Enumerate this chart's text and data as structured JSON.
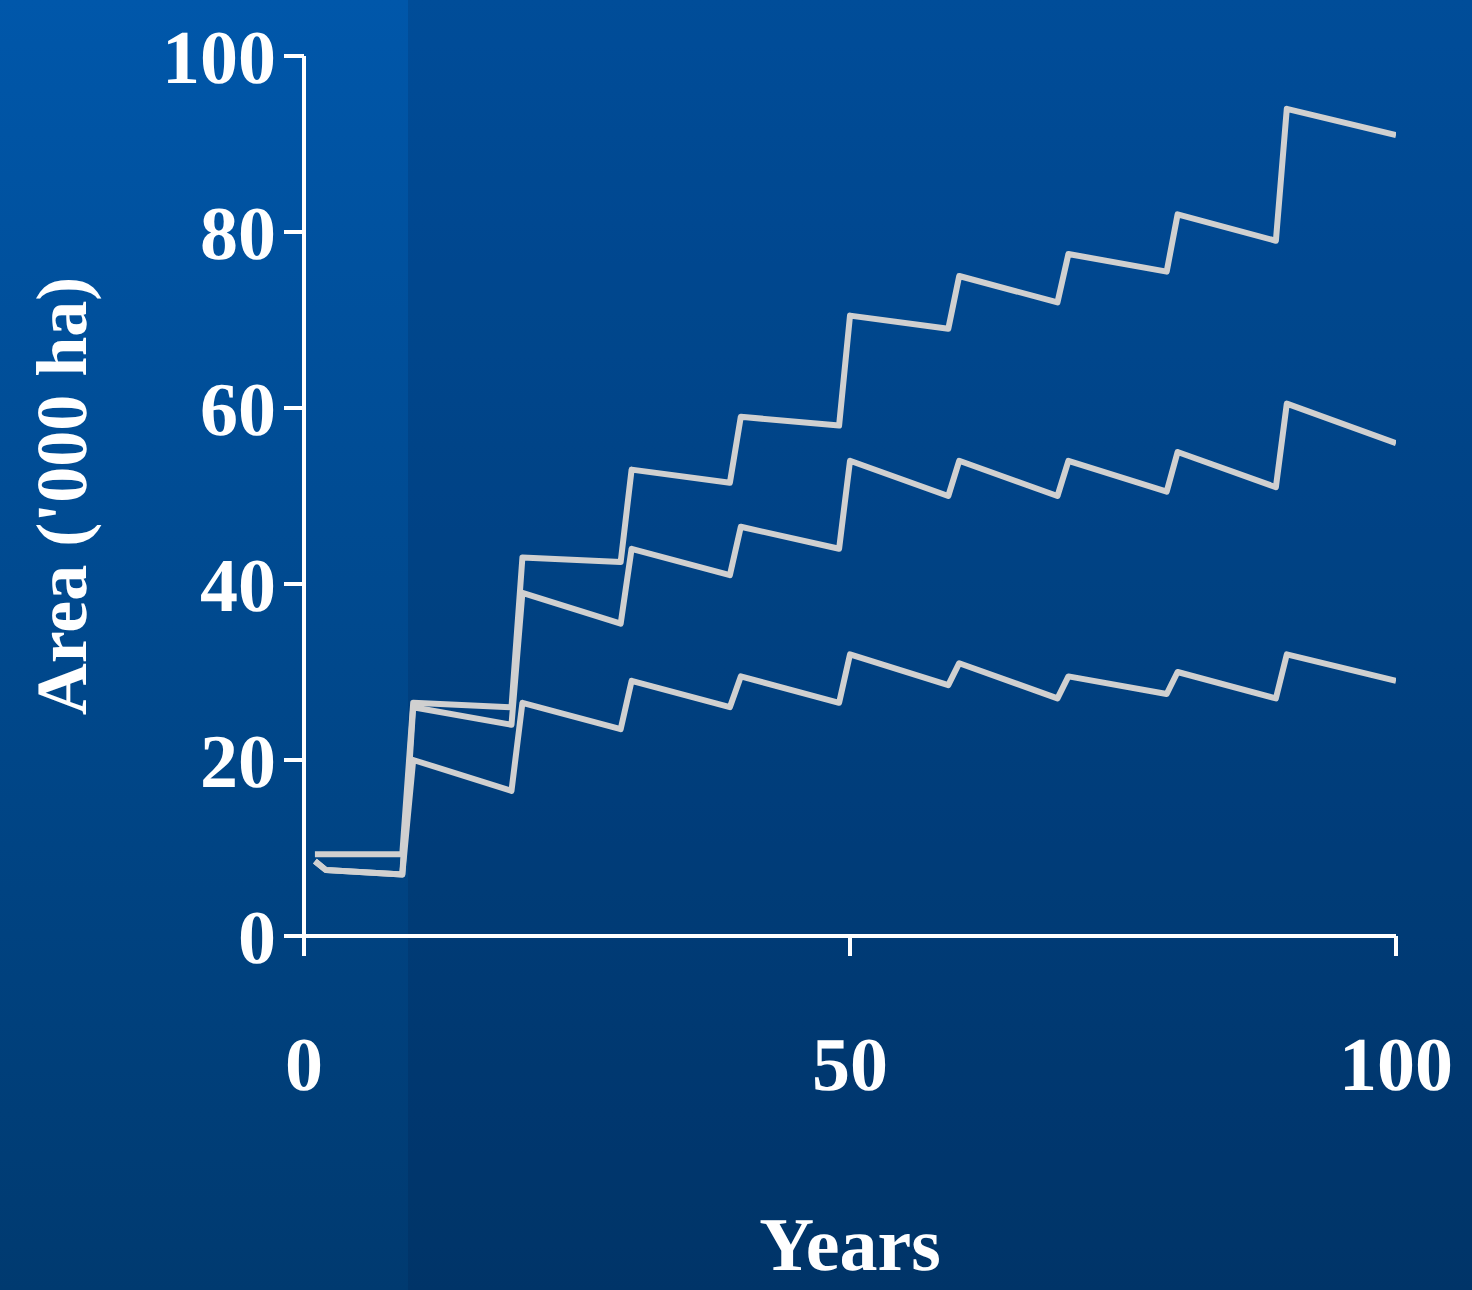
{
  "chart_data": {
    "type": "line",
    "xlabel": "Years",
    "ylabel": "Area ('000 ha)",
    "xlim": [
      0,
      100
    ],
    "xticks": [
      0,
      50,
      100
    ],
    "ylim": [
      0,
      100
    ],
    "yticks": [
      0,
      20,
      40,
      60,
      80,
      100
    ],
    "grid": false,
    "legend": false,
    "marker": "none",
    "line_style": "solid",
    "series": [
      {
        "color": "#d0d0d0",
        "x": [
          1,
          9,
          10,
          19,
          20,
          29,
          30,
          39,
          40,
          49,
          50,
          59,
          60,
          69,
          70,
          79,
          80,
          89,
          90,
          100
        ],
        "values": [
          9.3,
          9.3,
          26.5,
          26,
          43,
          42.5,
          53,
          51.5,
          59,
          58,
          70.5,
          69,
          75,
          72,
          77.5,
          75.5,
          82,
          79,
          94,
          91
        ]
      },
      {
        "color": "#d0d0d0",
        "x": [
          1,
          2,
          9,
          10,
          19,
          20,
          29,
          30,
          39,
          40,
          49,
          50,
          59,
          60,
          69,
          70,
          79,
          80,
          89,
          90,
          100
        ],
        "values": [
          8.5,
          7.5,
          7,
          26,
          24,
          39,
          35.5,
          44,
          41,
          46.5,
          44,
          54,
          50,
          54,
          50,
          54,
          50.5,
          55,
          51,
          60.5,
          56
        ]
      },
      {
        "color": "#d0d0d0",
        "x": [
          1,
          2,
          9,
          10,
          19,
          20,
          29,
          30,
          39,
          40,
          49,
          50,
          59,
          60,
          69,
          70,
          79,
          80,
          89,
          90,
          100
        ],
        "values": [
          8.5,
          7.5,
          7,
          20,
          16.5,
          26.5,
          23.5,
          29,
          26,
          29.5,
          26.5,
          32,
          28.5,
          31,
          27,
          29.5,
          27.5,
          30,
          27,
          32,
          29
        ]
      }
    ]
  }
}
